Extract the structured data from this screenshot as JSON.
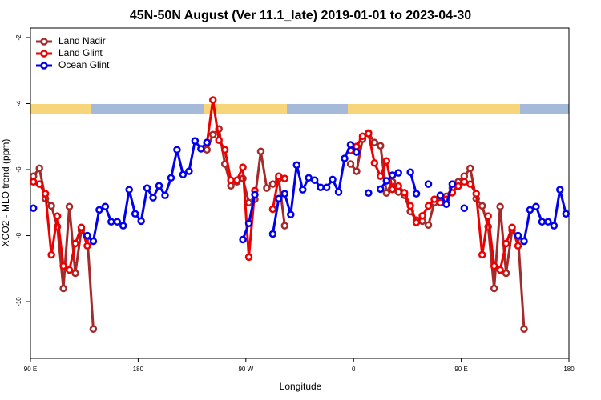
{
  "chart_data": {
    "type": "line",
    "title": "45N-50N August (Ver 11.1_late)   2019-01-01 to 2023-04-30",
    "x_label": "Longitude",
    "y_label": "XCO2 - MLO trend (ppm)",
    "x": [
      92.5,
      97.5,
      102.5,
      107.5,
      112.5,
      117.5,
      122.5,
      127.5,
      132.5,
      137.5,
      142.5,
      147.5,
      152.5,
      157.5,
      162.5,
      167.5,
      172.5,
      177.5,
      182.5,
      187.5,
      192.5,
      197.5,
      202.5,
      207.5,
      212.5,
      217.5,
      222.5,
      227.5,
      232.5,
      237.5,
      242.5,
      247.5,
      252.5,
      257.5,
      262.5,
      267.5,
      272.5,
      277.5,
      282.5,
      287.5,
      292.5,
      297.5,
      302.5,
      307.5,
      312.5,
      317.5,
      322.5,
      327.5,
      332.5,
      337.5,
      342.5,
      347.5,
      352.5,
      357.5,
      362.5,
      367.5,
      372.5,
      377.5,
      382.5,
      387.5,
      392.5,
      397.5,
      402.5,
      407.5,
      412.5,
      417.5,
      422.5,
      427.5,
      432.5,
      437.5,
      442.5,
      447.5,
      452.5,
      457.5,
      462.5,
      467.5,
      472.5,
      477.5,
      482.5,
      487.5,
      492.5,
      497.5,
      502.5,
      507.5,
      512.5,
      517.5,
      522.5,
      527.5,
      532.5,
      537.5
    ],
    "series": [
      {
        "name": "Land Nadir",
        "color": "#a52a2a",
        "values": [
          -6.2,
          -5.96,
          -6.88,
          -7.1,
          -7.73,
          -9.6,
          -7.12,
          -9.14,
          -7.83,
          -8.04,
          -10.83,
          null,
          null,
          null,
          null,
          null,
          null,
          null,
          null,
          null,
          null,
          null,
          null,
          null,
          null,
          null,
          null,
          null,
          null,
          -5.4,
          -4.94,
          -4.77,
          -5.83,
          -6.49,
          -6.37,
          -6.27,
          -7.0,
          -6.9,
          -5.45,
          -6.56,
          -6.44,
          -6.27,
          -7.7,
          null,
          null,
          null,
          null,
          null,
          null,
          null,
          null,
          null,
          null,
          -5.83,
          -6.05,
          -5.08,
          -4.89,
          -5.18,
          -5.28,
          -6.71,
          -6.37,
          -6.68,
          -6.78,
          -7.27,
          -7.53,
          -7.56,
          -7.68,
          -7.0,
          -6.81,
          -6.81,
          -6.56,
          -6.37,
          -6.2,
          -5.96,
          -6.88,
          -7.1,
          -7.73,
          -9.6,
          -7.12,
          -9.14,
          -7.83,
          -8.04,
          -10.83,
          null,
          null,
          null,
          null,
          null,
          null,
          null
        ]
      },
      {
        "name": "Land Glint",
        "color": "#ee0000",
        "values": [
          -6.37,
          -6.44,
          -6.73,
          -8.58,
          -7.41,
          -8.92,
          -9.04,
          -8.24,
          -7.75,
          -8.31,
          null,
          null,
          null,
          null,
          null,
          null,
          null,
          null,
          null,
          null,
          null,
          null,
          null,
          null,
          null,
          null,
          null,
          null,
          null,
          -5.2,
          -3.89,
          -5.11,
          -5.4,
          -6.32,
          -6.32,
          -5.93,
          -8.65,
          -6.64,
          null,
          null,
          -7.2,
          -6.2,
          -6.27,
          null,
          null,
          null,
          null,
          null,
          null,
          null,
          null,
          null,
          null,
          -5.42,
          -5.3,
          -4.99,
          -4.91,
          -5.8,
          -6.2,
          -5.74,
          -6.6,
          -6.5,
          -6.7,
          -7.1,
          -7.6,
          -7.4,
          -7.1,
          -6.9,
          -7.0,
          -6.9,
          -6.7,
          -6.5,
          -6.37,
          -6.44,
          -6.73,
          -8.58,
          -7.41,
          -8.92,
          -9.04,
          -8.24,
          -7.75,
          -8.31,
          null,
          null,
          null,
          null,
          null,
          null,
          null,
          null
        ]
      },
      {
        "name": "Ocean Glint",
        "color": "#0000ee",
        "values": [
          -7.17,
          null,
          null,
          null,
          null,
          null,
          null,
          null,
          null,
          -8.0,
          -8.17,
          -7.22,
          -7.12,
          -7.58,
          -7.58,
          -7.7,
          -6.61,
          -7.34,
          -7.56,
          -6.56,
          -6.85,
          -6.49,
          -6.78,
          -6.25,
          -5.4,
          -6.15,
          -6.05,
          -5.13,
          -5.37,
          -5.18,
          null,
          null,
          null,
          null,
          null,
          -8.12,
          -7.63,
          -6.76,
          null,
          null,
          -7.95,
          -6.88,
          -6.73,
          -7.36,
          -5.86,
          -6.61,
          -6.25,
          -6.32,
          -6.54,
          -6.54,
          -6.3,
          -6.68,
          -5.66,
          -5.25,
          -5.47,
          null,
          -6.71,
          null,
          -6.59,
          -6.34,
          -6.17,
          -6.1,
          null,
          -6.08,
          -6.73,
          null,
          -6.44,
          null,
          -6.78,
          -7.05,
          -6.44,
          null,
          -7.17,
          null,
          null,
          null,
          null,
          null,
          null,
          null,
          null,
          -8.0,
          -8.17,
          -7.22,
          -7.12,
          -7.58,
          -7.58,
          -7.7,
          -6.61,
          -7.34
        ]
      }
    ],
    "xlim": [
      90,
      540
    ],
    "xticks": [
      {
        "value": 90,
        "label": "90 E"
      },
      180,
      {
        "value": 270,
        "label": "90 W"
      },
      {
        "value": 360,
        "label": "0"
      },
      {
        "value": 450,
        "label": "90 E"
      },
      {
        "value": 540,
        "label": "180"
      }
    ],
    "ylim": [
      -11.72,
      -1.71
    ],
    "yticks": [
      -2,
      -4,
      -6,
      -8,
      -10
    ],
    "legend": "top-left"
  }
}
